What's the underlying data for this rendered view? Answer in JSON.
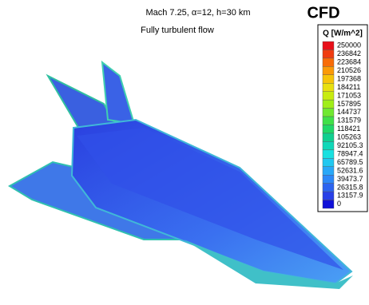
{
  "header": {
    "title": "Mach 7.25, α=12, h=30 km",
    "subtitle": "Fully turbulent flow",
    "badge": "CFD"
  },
  "colorbar": {
    "title": "Q [W/m^2]",
    "levels": [
      250000,
      236842,
      223684,
      210526,
      197368,
      184211,
      171053,
      157895,
      144737,
      131579,
      118421,
      105263,
      92105.3,
      78947.4,
      65789.5,
      52631.6,
      39473.7,
      26315.8,
      13157.9,
      0
    ],
    "colors": [
      "#e8101a",
      "#f03c10",
      "#f86c08",
      "#fb9a08",
      "#f6c40a",
      "#e8e010",
      "#c8ec10",
      "#a0ee18",
      "#70e830",
      "#40e048",
      "#20d868",
      "#10d090",
      "#10d8b8",
      "#18e0e0",
      "#20c8f0",
      "#28a8f8",
      "#2c88f8",
      "#2c64f0",
      "#2840e8",
      "#1010d8"
    ]
  }
}
